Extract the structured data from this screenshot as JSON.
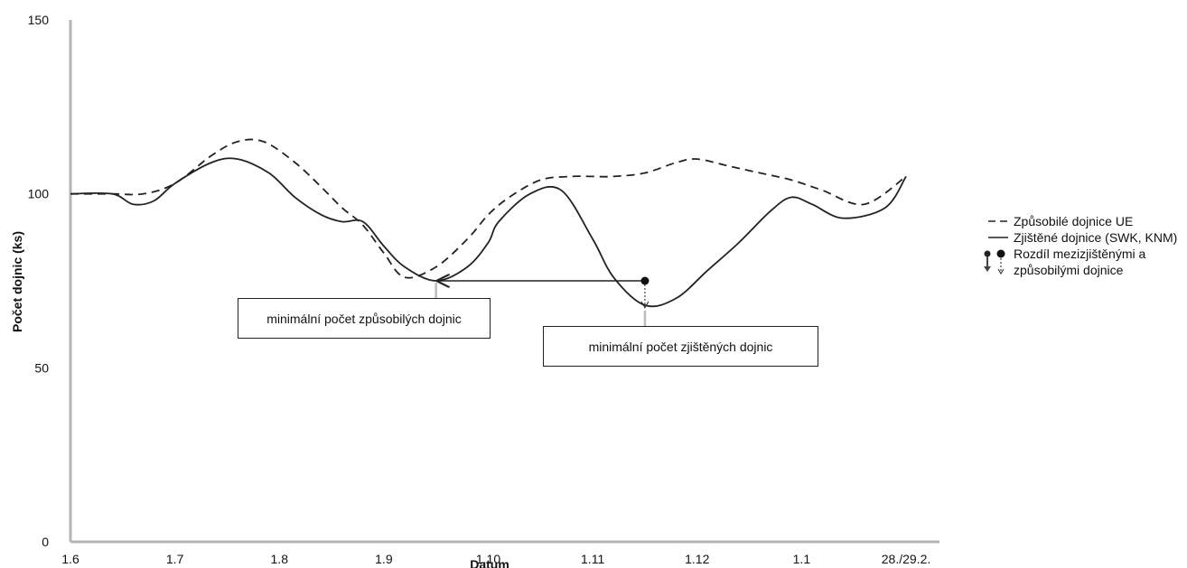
{
  "chart_data": {
    "type": "line",
    "xlabel": "Datum",
    "ylabel": "Počet dojnic (ks)",
    "categories": [
      "1.6",
      "1.7",
      "1.8",
      "1.9",
      "1.10",
      "1.11",
      "1.12",
      "1.1",
      "28./29.2."
    ],
    "y_ticks": [
      "0",
      "50",
      "100",
      "150"
    ],
    "ylim": [
      0,
      150
    ],
    "grid": false,
    "legend_position": "right",
    "series": [
      {
        "name": "Způsobilé dojnice UE",
        "style": "dashed",
        "x": [
          0,
          0.4,
          0.7,
          1.0,
          1.35,
          1.6,
          1.85,
          2.15,
          2.4,
          2.6,
          2.8,
          3.0,
          3.2,
          3.5,
          3.8,
          4.0,
          4.2,
          4.5,
          4.8,
          5.0,
          5.2,
          5.5,
          5.8,
          6.0,
          6.3,
          6.6,
          6.9,
          7.2,
          7.6,
          8.0
        ],
        "values": [
          100,
          100,
          100,
          103,
          111,
          115,
          115,
          109,
          102,
          96,
          91,
          83,
          76,
          79,
          87,
          94,
          99,
          104,
          105,
          105,
          105,
          106,
          109,
          110,
          108,
          106,
          104,
          101,
          97,
          105
        ]
      },
      {
        "name": "Zjištěné dojnice (SWK, KNM)",
        "style": "solid",
        "x": [
          0,
          0.4,
          0.6,
          0.8,
          1.0,
          1.35,
          1.6,
          1.9,
          2.15,
          2.4,
          2.6,
          2.8,
          3.0,
          3.2,
          3.5,
          3.8,
          4.0,
          4.1,
          4.4,
          4.7,
          5.0,
          5.2,
          5.5,
          5.8,
          6.1,
          6.4,
          6.7,
          6.9,
          7.1,
          7.4,
          7.8,
          8.0
        ],
        "values": [
          100,
          100,
          97,
          98,
          103,
          109,
          110,
          106,
          99,
          94,
          92,
          92,
          85,
          79,
          75,
          79,
          86,
          92,
          100,
          101,
          87,
          76,
          68,
          70,
          78,
          86,
          95,
          99,
          97,
          93,
          96,
          105
        ]
      }
    ],
    "annotations": [
      "minimální počet způsobilých dojnic",
      "minimální počet zjištěných dojnic"
    ],
    "difference_arrow": {
      "from_value": 75,
      "to_value": 67
    }
  },
  "legend": {
    "items": [
      {
        "label": "Způsobilé dojnice UE",
        "key": "dashed-line"
      },
      {
        "label": "Zjištěné dojnice (SWK, KNM)",
        "key": "solid-line"
      },
      {
        "label": "Rozdíl mezizjištěnými a způsobilými dojnice",
        "key": "difference-marker"
      }
    ]
  },
  "colors": {
    "axis": "#b5b5b5",
    "line": "#222222",
    "text": "#111111"
  }
}
